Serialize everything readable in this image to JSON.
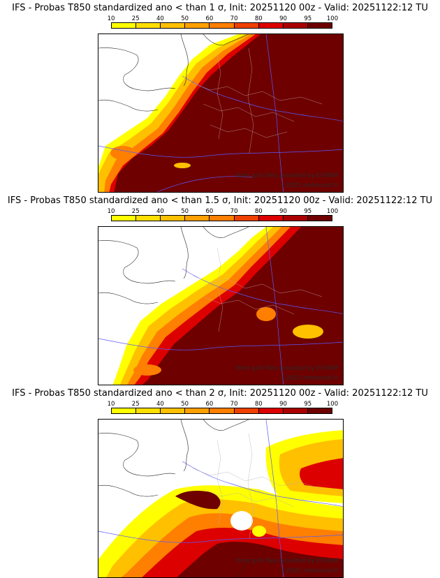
{
  "legend": {
    "labels": [
      "10",
      "25",
      "40",
      "50",
      "60",
      "70",
      "80",
      "90",
      "95",
      "100"
    ],
    "colors": [
      "#ffff00",
      "#ffdf00",
      "#ffc000",
      "#ffa000",
      "#ff7f00",
      "#ee4000",
      "#dd0000",
      "#aa0000",
      "#6e0000"
    ]
  },
  "panels": [
    {
      "title": "IFS - Probas T850  standardized ano < than 1 σ, Init: 20251120 00z - Valid: 20251122:12 TU",
      "credit1": "from grib files provided by ECMWF",
      "credit2": "©2025 meteociel.fr"
    },
    {
      "title": "IFS - Probas T850  standardized ano < than 1.5 σ, Init: 20251120 00z - Valid: 20251122:12 TU",
      "credit1": "from grib files provided by ECMWF",
      "credit2": "©2025 meteociel.fr"
    },
    {
      "title": "IFS - Probas T850  standardized ano < than 2 σ, Init: 20251120 00z - Valid: 20251122:12 TU",
      "credit1": "from grib files provided by ECMWF",
      "credit2": "©2025 meteociel.fr"
    }
  ]
}
